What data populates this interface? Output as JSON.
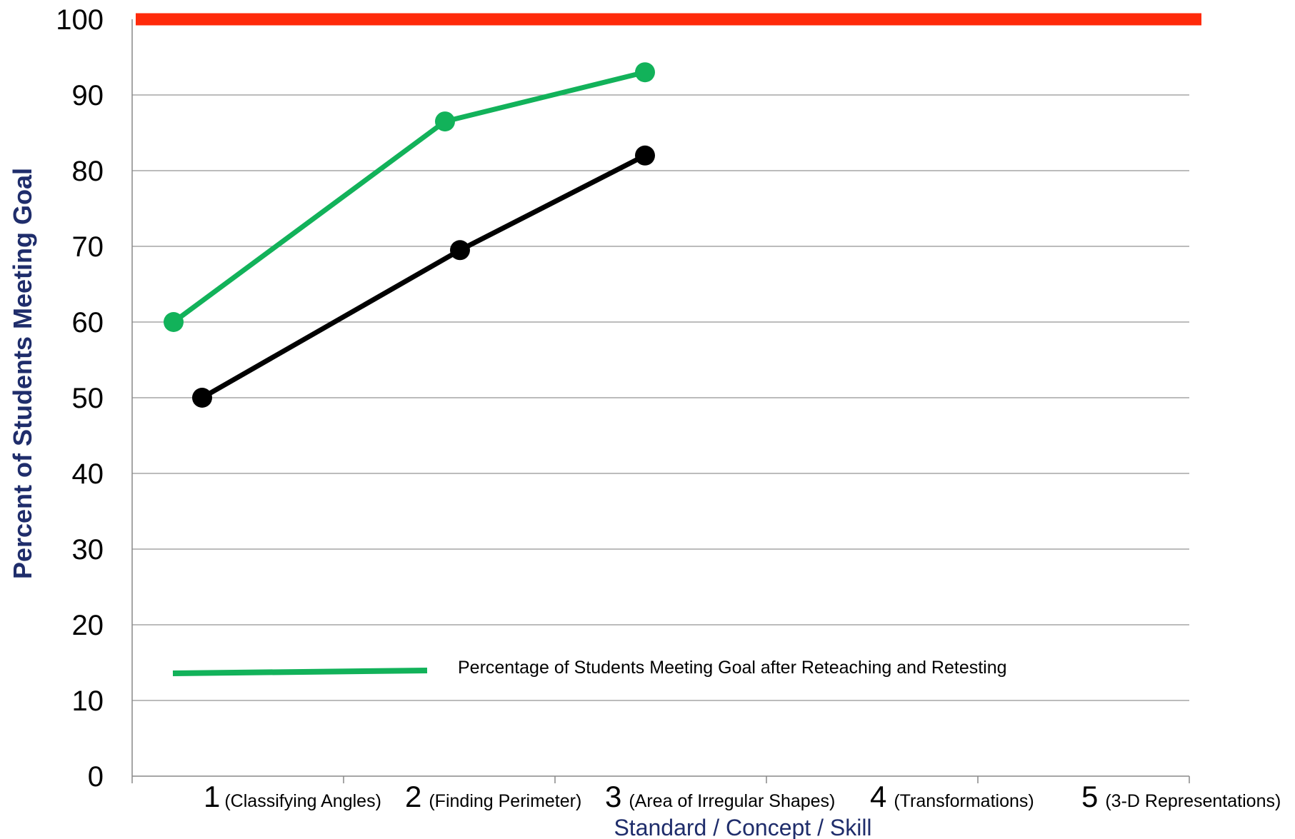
{
  "chart_data": {
    "type": "line",
    "xlabel": "Standard / Concept / Skill",
    "ylabel": "Percent of Students Meeting Goal",
    "ylim": [
      0,
      100
    ],
    "yticks": [
      0,
      10,
      20,
      30,
      40,
      50,
      60,
      70,
      80,
      90,
      100
    ],
    "grid": true,
    "categories": [
      {
        "number": "1",
        "name": "(Classifying Angles)"
      },
      {
        "number": "2",
        "name": "(Finding Perimeter)"
      },
      {
        "number": "3",
        "name": "(Area of Irregular Shapes)"
      },
      {
        "number": "4",
        "name": "(Transformations)"
      },
      {
        "number": "5",
        "name": "(3-D Representations)"
      }
    ],
    "goal_line": {
      "value": 100,
      "color": "#ff2a0a"
    },
    "series": [
      {
        "name": "Percentage of Students Meeting Goal after Reteaching and Retesting",
        "color": "#12b25a",
        "values": [
          60,
          86.5,
          93,
          null,
          null
        ]
      },
      {
        "color": "#000000",
        "values": [
          50,
          69.5,
          82,
          null,
          null
        ]
      }
    ],
    "legend": {
      "placement": "bottom-left",
      "entries": [
        "Percentage of Students Meeting Goal after Reteaching and Retesting"
      ]
    }
  }
}
